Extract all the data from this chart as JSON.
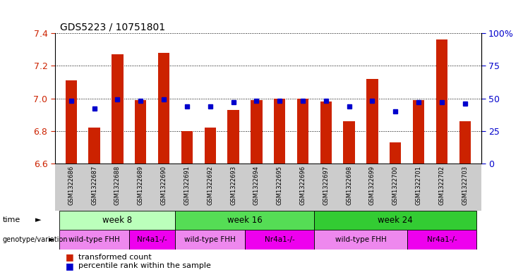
{
  "title": "GDS5223 / 10751801",
  "samples": [
    "GSM1322686",
    "GSM1322687",
    "GSM1322688",
    "GSM1322689",
    "GSM1322690",
    "GSM1322691",
    "GSM1322692",
    "GSM1322693",
    "GSM1322694",
    "GSM1322695",
    "GSM1322696",
    "GSM1322697",
    "GSM1322698",
    "GSM1322699",
    "GSM1322700",
    "GSM1322701",
    "GSM1322702",
    "GSM1322703"
  ],
  "transformed_counts": [
    7.11,
    6.82,
    7.27,
    6.99,
    7.28,
    6.8,
    6.82,
    6.93,
    6.99,
    7.0,
    7.0,
    6.98,
    6.86,
    7.12,
    6.73,
    6.99,
    7.36,
    6.86
  ],
  "percentile_ranks": [
    48,
    42,
    49,
    48,
    49,
    44,
    44,
    47,
    48,
    48,
    48,
    48,
    44,
    48,
    40,
    47,
    47,
    46
  ],
  "ylim_left": [
    6.6,
    7.4
  ],
  "ylim_right": [
    0,
    100
  ],
  "right_ticks": [
    0,
    25,
    50,
    75,
    100
  ],
  "left_ticks": [
    6.6,
    6.8,
    7.0,
    7.2,
    7.4
  ],
  "bar_color": "#cc2200",
  "dot_color": "#0000cc",
  "bar_bottom": 6.6,
  "time_groups": [
    {
      "label": "week 8",
      "start": 0,
      "end": 5,
      "color": "#bbffbb"
    },
    {
      "label": "week 16",
      "start": 5,
      "end": 11,
      "color": "#55dd55"
    },
    {
      "label": "week 24",
      "start": 11,
      "end": 18,
      "color": "#33cc33"
    }
  ],
  "genotype_groups": [
    {
      "label": "wild-type FHH",
      "start": 0,
      "end": 3,
      "color": "#ee88ee"
    },
    {
      "label": "Nr4a1-/-",
      "start": 3,
      "end": 5,
      "color": "#ee00ee"
    },
    {
      "label": "wild-type FHH",
      "start": 5,
      "end": 8,
      "color": "#ee88ee"
    },
    {
      "label": "Nr4a1-/-",
      "start": 8,
      "end": 11,
      "color": "#ee00ee"
    },
    {
      "label": "wild-type FHH",
      "start": 11,
      "end": 15,
      "color": "#ee88ee"
    },
    {
      "label": "Nr4a1-/-",
      "start": 15,
      "end": 18,
      "color": "#ee00ee"
    }
  ],
  "legend_items": [
    {
      "label": "transformed count",
      "color": "#cc2200"
    },
    {
      "label": "percentile rank within the sample",
      "color": "#0000cc"
    }
  ],
  "grid_color": "#888888",
  "axis_color_left": "#cc2200",
  "axis_color_right": "#0000cc",
  "bg_color": "#ffffff",
  "xticklabel_bg": "#cccccc",
  "sample_label_fontsize": 6.0,
  "title_fontsize": 10,
  "bar_width": 0.5
}
